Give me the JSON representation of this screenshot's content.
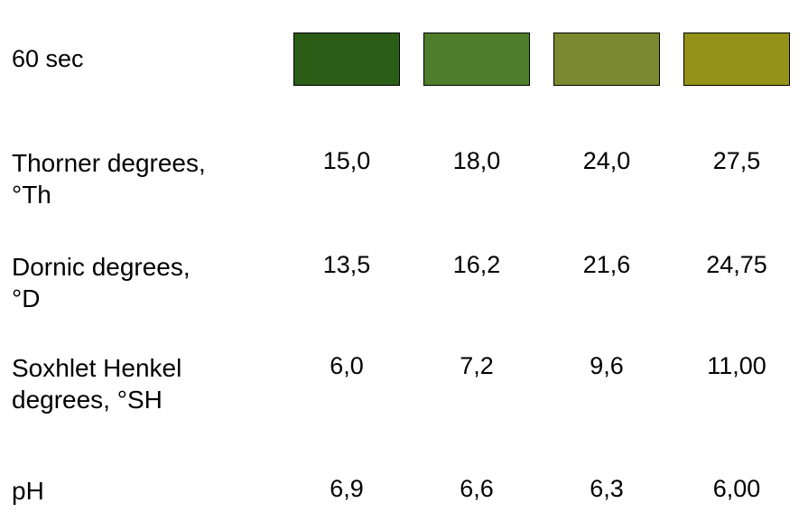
{
  "table": {
    "header": {
      "label": "60 sec",
      "swatches": [
        "#2a5e17",
        "#4f7e2a",
        "#7b8930",
        "#949218"
      ]
    },
    "rows": [
      {
        "label": "Thorner degrees,\n°Th",
        "values": [
          "15,0",
          "18,0",
          "24,0",
          "27,5"
        ]
      },
      {
        "label": "Dornic degrees,\n°D",
        "values": [
          "13,5",
          "16,2",
          "21,6",
          "24,75"
        ]
      },
      {
        "label": "Soxhlet Henkel\ndegrees, °SH",
        "values": [
          "6,0",
          "7,2",
          "9,6",
          "11,00"
        ]
      },
      {
        "label": "pH",
        "values": [
          "6,9",
          "6,6",
          "6,3",
          "6,00"
        ]
      }
    ]
  }
}
